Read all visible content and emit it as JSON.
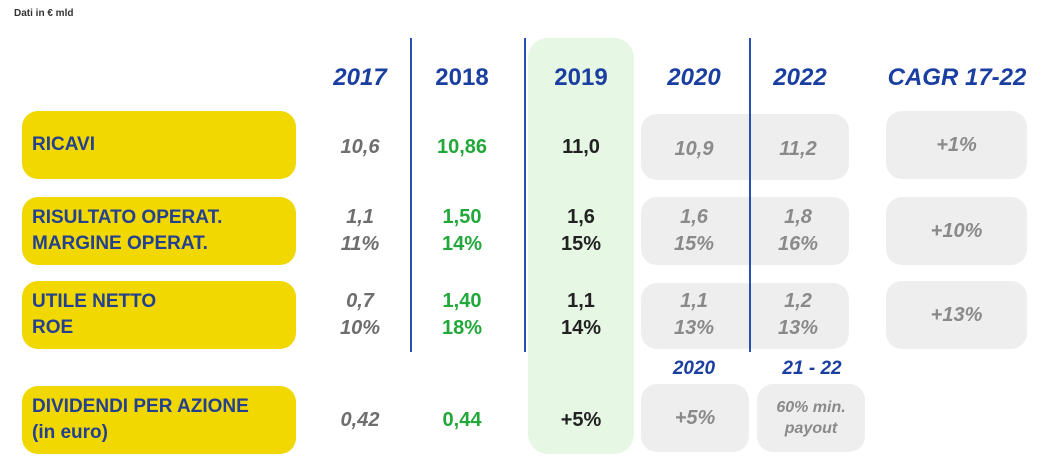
{
  "note": "Dati in € mld",
  "headers": {
    "y2017": "2017",
    "y2018": "2018",
    "y2019": "2019",
    "y2020": "2020",
    "y2022": "2022",
    "cagr": "CAGR 17-22"
  },
  "rows": {
    "ricavi": {
      "label": "RICAVI",
      "v2017": "10,6",
      "v2018": "10,86",
      "v2019": "11,0",
      "v2020": "10,9",
      "v2022": "11,2",
      "cagr": "+1%"
    },
    "risultato": {
      "label1": "RISULTATO OPERAT.",
      "label2": "MARGINE OPERAT.",
      "v2017a": "1,1",
      "v2017b": "11%",
      "v2018a": "1,50",
      "v2018b": "14%",
      "v2019a": "1,6",
      "v2019b": "15%",
      "v2020a": "1,6",
      "v2020b": "15%",
      "v2022a": "1,8",
      "v2022b": "16%",
      "cagr": "+10%"
    },
    "utile": {
      "label1": "UTILE NETTO",
      "label2": "ROE",
      "v2017a": "0,7",
      "v2017b": "10%",
      "v2018a": "1,40",
      "v2018b": "18%",
      "v2019a": "1,1",
      "v2019b": "14%",
      "v2020a": "1,1",
      "v2020b": "13%",
      "v2022a": "1,2",
      "v2022b": "13%",
      "cagr": "+13%"
    },
    "dividendi": {
      "label1": "DIVIDENDI PER AZIONE",
      "label2": "(in euro)",
      "sub2020": "2020",
      "sub2122": "21 - 22",
      "v2017": "0,42",
      "v2018": "0,44",
      "v2019": "+5%",
      "v2020": "+5%",
      "v2122a": "60% min.",
      "v2122b": "payout"
    }
  },
  "colors": {
    "yellow": "#f0d800",
    "blue": "#1b3fa0",
    "green": "#22a83a",
    "lightgreen": "#e6f7e4",
    "gray": "#eeeeee"
  }
}
